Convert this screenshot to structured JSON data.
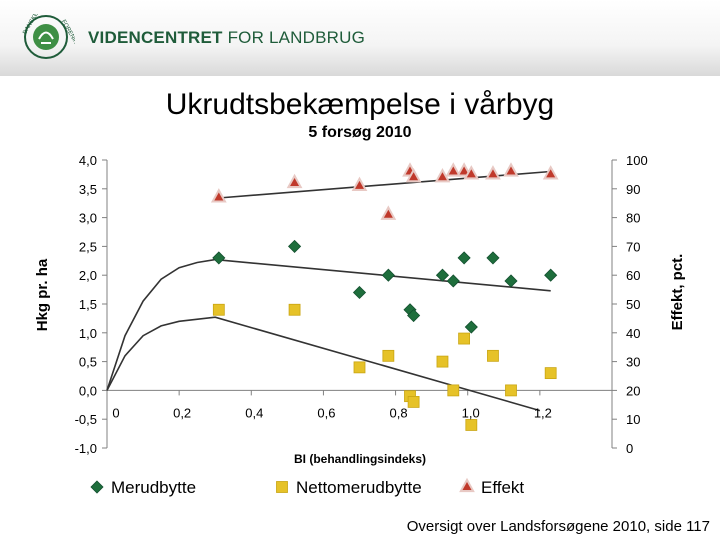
{
  "header": {
    "logo_arc_left": "DANSKE",
    "logo_arc_right": "FORENING",
    "brand_bold": "VIDENCENTRET",
    "brand_rest": " FOR LANDBRUG",
    "brand_color": "#1f5c3a"
  },
  "slide": {
    "title": "Ukrudtsbekæmpelse i vårbyg",
    "subtitle": "5 forsøg 2010",
    "footer": "Oversigt over Landsforsøgene 2010, side 117"
  },
  "chart_data": {
    "type": "scatter",
    "xlabel": "BI (behandlingsindeks)",
    "ylabel": "Hkg pr. ha",
    "y2label": "Effekt, pct.",
    "xlim": [
      0,
      1.4
    ],
    "ylim": [
      -1.0,
      4.0
    ],
    "y2lim": [
      0,
      100
    ],
    "x_ticks": [
      "0",
      "0,2",
      "0,4",
      "0,6",
      "0,8",
      "1,0",
      "1,2"
    ],
    "y_ticks": [
      "4,0",
      "3,5",
      "3,0",
      "2,5",
      "2,0",
      "1,5",
      "1,0",
      "0,5",
      "0,0",
      "-0,5",
      "-1,0"
    ],
    "y2_ticks": [
      "100",
      "90",
      "80",
      "70",
      "60",
      "50",
      "40",
      "30",
      "20",
      "10",
      "0"
    ],
    "grid": false,
    "legend_position": "bottom",
    "series": [
      {
        "name": "Merudbytte",
        "axis": "left",
        "marker": "diamond",
        "color": "#1e6e3c",
        "points": [
          [
            0.31,
            2.3
          ],
          [
            0.52,
            2.5
          ],
          [
            0.7,
            1.7
          ],
          [
            0.78,
            2.0
          ],
          [
            0.84,
            1.4
          ],
          [
            0.85,
            1.3
          ],
          [
            0.93,
            2.0
          ],
          [
            0.96,
            1.9
          ],
          [
            0.99,
            2.3
          ],
          [
            1.01,
            1.1
          ],
          [
            1.07,
            2.3
          ],
          [
            1.12,
            1.9
          ],
          [
            1.23,
            2.0
          ]
        ],
        "trend": [
          [
            0.0,
            0.0
          ],
          [
            0.05,
            0.95
          ],
          [
            0.1,
            1.55
          ],
          [
            0.15,
            1.93
          ],
          [
            0.2,
            2.13
          ],
          [
            0.25,
            2.22
          ],
          [
            0.3,
            2.27
          ],
          [
            1.23,
            1.73
          ]
        ]
      },
      {
        "name": "Nettomerudbytte",
        "axis": "left",
        "marker": "square",
        "color": "#e6c228",
        "points": [
          [
            0.31,
            1.4
          ],
          [
            0.52,
            1.4
          ],
          [
            0.7,
            0.4
          ],
          [
            0.78,
            0.6
          ],
          [
            0.84,
            -0.1
          ],
          [
            0.85,
            -0.2
          ],
          [
            0.93,
            0.5
          ],
          [
            0.96,
            0.0
          ],
          [
            0.99,
            0.9
          ],
          [
            1.01,
            -0.6
          ],
          [
            1.07,
            0.6
          ],
          [
            1.12,
            0.0
          ],
          [
            1.23,
            0.3
          ]
        ],
        "trend": [
          [
            0.0,
            0.0
          ],
          [
            0.05,
            0.6
          ],
          [
            0.1,
            0.95
          ],
          [
            0.15,
            1.12
          ],
          [
            0.2,
            1.2
          ],
          [
            0.3,
            1.27
          ],
          [
            1.2,
            -0.35
          ]
        ]
      },
      {
        "name": "Effekt",
        "axis": "right",
        "marker": "triangle",
        "color": "#c0392b",
        "points": [
          [
            0.31,
            87
          ],
          [
            0.52,
            92
          ],
          [
            0.7,
            91
          ],
          [
            0.78,
            81
          ],
          [
            0.84,
            96
          ],
          [
            0.85,
            94
          ],
          [
            0.93,
            94
          ],
          [
            0.96,
            96
          ],
          [
            0.99,
            96
          ],
          [
            1.01,
            95
          ],
          [
            1.07,
            95
          ],
          [
            1.12,
            96
          ],
          [
            1.23,
            95
          ]
        ],
        "trend": [
          [
            0.31,
            86.8
          ],
          [
            1.23,
            96.0
          ]
        ]
      }
    ]
  }
}
